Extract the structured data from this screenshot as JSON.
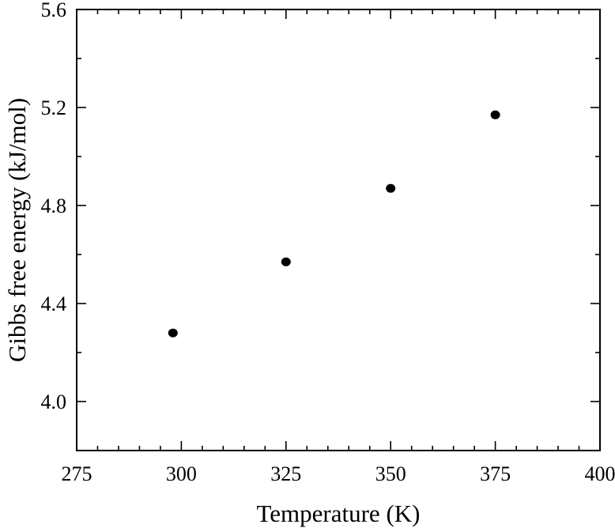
{
  "chart_data": {
    "type": "scatter",
    "title": "",
    "xlabel": "Temperature (K)",
    "ylabel": "Gibbs free energy (kJ/mol)",
    "xlim": [
      275,
      400
    ],
    "ylim": [
      3.8,
      5.6
    ],
    "xticks": [
      "275",
      "300",
      "325",
      "350",
      "375",
      "400"
    ],
    "yticks": [
      "4.0",
      "4.4",
      "4.8",
      "5.2",
      "5.6"
    ],
    "grid": false,
    "series": [
      {
        "x": [
          298,
          325,
          350,
          375
        ],
        "y": [
          4.28,
          4.57,
          4.87,
          5.17
        ]
      }
    ],
    "marker_color": "#000000"
  }
}
